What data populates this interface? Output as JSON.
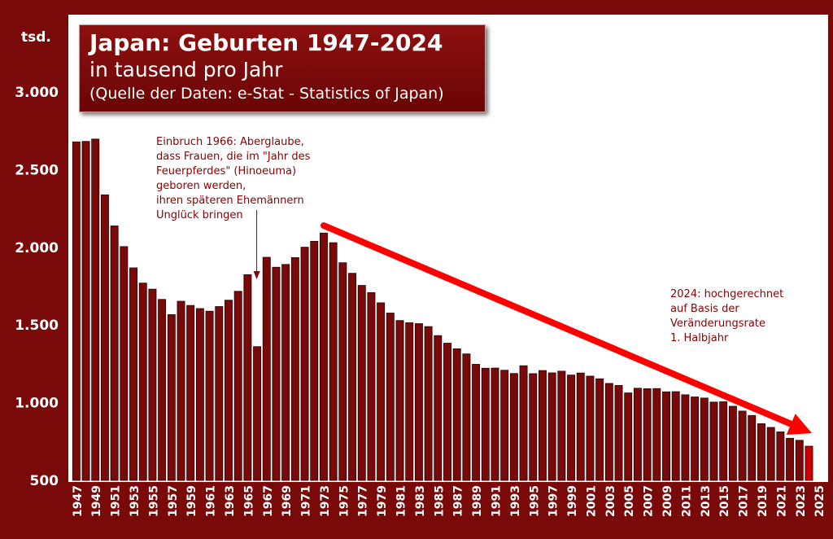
{
  "title": "Japan: Geburten 1947-2024",
  "subtitle": "in tausend pro Jahr",
  "source": "(Quelle der Daten: e-Stat - Statistics of Japan)",
  "unit_label": "tsd.",
  "annotation_1966": "Einbruch 1966: Aberglaube,\ndass Frauen, die im \"Jahr des\nFeuerpferdes\" (Hinoeuma)\ngeboren werden,\nihren späteren Ehemännern\nUnglück bringen",
  "annotation_2024": "2024: hochgerechnet\nauf Basis der\nVeränderungsrate\n1. Halbjahr",
  "colors": {
    "bar": "#7a0a0a",
    "bar_projected": "#cc0000",
    "frame": "#7a0a0a",
    "arrow": "#ff0000",
    "annotation": "#8b0000"
  },
  "chart_data": {
    "type": "bar",
    "ylim": [
      500,
      3000
    ],
    "yticks": [
      "500",
      "1.000",
      "1.500",
      "2.000",
      "2.500",
      "3.000"
    ],
    "ytick_values": [
      500,
      1000,
      1500,
      2000,
      2500,
      3000
    ],
    "xlim": [
      1947,
      2025
    ],
    "xticks": [
      "1947",
      "1949",
      "1951",
      "1953",
      "1955",
      "1957",
      "1959",
      "1961",
      "1963",
      "1965",
      "1967",
      "1969",
      "1971",
      "1973",
      "1975",
      "1977",
      "1979",
      "1981",
      "1983",
      "1985",
      "1987",
      "1989",
      "1991",
      "1993",
      "1995",
      "1997",
      "1999",
      "2001",
      "2003",
      "2005",
      "2007",
      "2009",
      "2011",
      "2013",
      "2015",
      "2017",
      "2019",
      "2021",
      "2023",
      "2025"
    ],
    "x": [
      1947,
      1948,
      1949,
      1950,
      1951,
      1952,
      1953,
      1954,
      1955,
      1956,
      1957,
      1958,
      1959,
      1960,
      1961,
      1962,
      1963,
      1964,
      1965,
      1966,
      1967,
      1968,
      1969,
      1970,
      1971,
      1972,
      1973,
      1974,
      1975,
      1976,
      1977,
      1978,
      1979,
      1980,
      1981,
      1982,
      1983,
      1984,
      1985,
      1986,
      1987,
      1988,
      1989,
      1990,
      1991,
      1992,
      1993,
      1994,
      1995,
      1996,
      1997,
      1998,
      1999,
      2000,
      2001,
      2002,
      2003,
      2004,
      2005,
      2006,
      2007,
      2008,
      2009,
      2010,
      2011,
      2012,
      2013,
      2014,
      2015,
      2016,
      2017,
      2018,
      2019,
      2020,
      2021,
      2022,
      2023,
      2024
    ],
    "values": [
      2679,
      2682,
      2697,
      2338,
      2138,
      2005,
      1868,
      1770,
      1731,
      1665,
      1567,
      1653,
      1626,
      1606,
      1589,
      1619,
      1660,
      1717,
      1824,
      1361,
      1936,
      1872,
      1890,
      1934,
      2001,
      2039,
      2092,
      2030,
      1901,
      1833,
      1755,
      1709,
      1643,
      1577,
      1529,
      1515,
      1509,
      1490,
      1432,
      1383,
      1347,
      1314,
      1247,
      1222,
      1223,
      1209,
      1188,
      1238,
      1187,
      1207,
      1192,
      1203,
      1178,
      1191,
      1171,
      1154,
      1124,
      1111,
      1063,
      1093,
      1090,
      1091,
      1070,
      1071,
      1051,
      1037,
      1030,
      1004,
      1006,
      977,
      946,
      918,
      865,
      841,
      812,
      771,
      758,
      720
    ]
  }
}
